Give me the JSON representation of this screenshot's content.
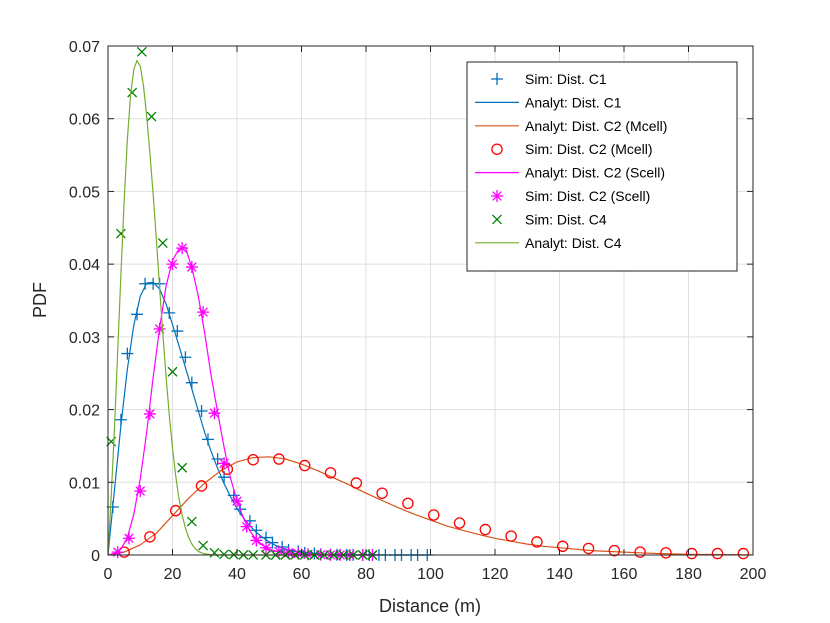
{
  "chart_data": {
    "type": "line",
    "title": "",
    "xlabel": "Distance (m)",
    "ylabel": "PDF",
    "xlim": [
      0,
      200
    ],
    "ylim": [
      0,
      0.07
    ],
    "xticks": [
      0,
      20,
      40,
      60,
      80,
      100,
      120,
      140,
      160,
      180,
      200
    ],
    "xtick_labels": [
      "0",
      "20",
      "40",
      "60",
      "80",
      "100",
      "120",
      "140",
      "160",
      "180",
      "200"
    ],
    "yticks": [
      0,
      0.01,
      0.02,
      0.03,
      0.04,
      0.05,
      0.06,
      0.07
    ],
    "ytick_labels": [
      "0",
      "0.01",
      "0.02",
      "0.03",
      "0.04",
      "0.05",
      "0.06",
      "0.07"
    ],
    "grid": true,
    "legend_position": "top-right",
    "series": [
      {
        "name": "Sim: Dist. C1",
        "kind": "markers",
        "marker": "plus",
        "color": "#0072BD",
        "x": [
          1.5,
          4,
          6,
          9,
          11.5,
          14,
          16,
          19,
          21.5,
          24,
          26,
          29,
          31,
          34,
          36,
          39,
          41,
          44,
          46,
          49,
          51,
          54,
          56,
          59,
          61,
          64,
          66,
          69,
          71,
          74,
          76,
          79,
          81,
          84,
          86,
          89,
          91,
          94,
          96,
          99
        ],
        "y": [
          0.0066,
          0.0186,
          0.0277,
          0.0331,
          0.0373,
          0.0373,
          0.0373,
          0.0333,
          0.0308,
          0.0272,
          0.0237,
          0.0198,
          0.0159,
          0.0132,
          0.0107,
          0.0082,
          0.0063,
          0.0047,
          0.0034,
          0.0024,
          0.0017,
          0.0011,
          0.0007,
          0.0005,
          0.0003,
          0.0002,
          0.0001,
          5e-05,
          3e-05,
          2e-05,
          1e-05,
          0,
          0,
          0,
          0,
          0,
          0,
          0,
          0,
          0
        ]
      },
      {
        "name": "Analyt: Dist. C1",
        "kind": "line",
        "color": "#0072BD",
        "x": [
          0,
          2,
          4,
          6,
          8,
          10,
          12,
          14,
          16,
          18,
          20,
          22,
          24,
          26,
          28,
          30,
          32,
          34,
          36,
          38,
          40,
          42,
          44,
          46,
          48,
          50,
          52,
          54,
          56,
          58,
          60,
          64,
          68,
          72,
          76,
          80,
          90,
          100
        ],
        "y": [
          0,
          0.009,
          0.0178,
          0.0255,
          0.0316,
          0.0356,
          0.0374,
          0.0375,
          0.0366,
          0.0345,
          0.0317,
          0.0288,
          0.0258,
          0.0228,
          0.0198,
          0.0168,
          0.0142,
          0.0119,
          0.0098,
          0.008,
          0.0064,
          0.0051,
          0.004,
          0.0031,
          0.0024,
          0.0018,
          0.0013,
          0.001,
          0.0007,
          0.0005,
          0.0004,
          0.0002,
          0.0001,
          5e-05,
          2e-05,
          1e-05,
          0,
          0
        ]
      },
      {
        "name": "Analyt: Dist. C2 (Mcell)",
        "kind": "line",
        "color": "#D95319",
        "x": [
          0,
          5,
          10,
          15,
          20,
          25,
          30,
          35,
          40,
          45,
          50,
          55,
          60,
          65,
          70,
          75,
          80,
          85,
          90,
          95,
          100,
          105,
          110,
          115,
          120,
          125,
          130,
          135,
          140,
          145,
          150,
          155,
          160,
          165,
          170,
          180,
          190,
          200
        ],
        "y": [
          0,
          0.0004,
          0.0014,
          0.003,
          0.0054,
          0.0078,
          0.0099,
          0.0116,
          0.0128,
          0.0134,
          0.0135,
          0.0132,
          0.0125,
          0.0116,
          0.0106,
          0.0096,
          0.0085,
          0.0075,
          0.0065,
          0.0056,
          0.0048,
          0.004,
          0.0034,
          0.0028,
          0.0023,
          0.0019,
          0.0015,
          0.0012,
          0.001,
          0.0008,
          0.0006,
          0.0005,
          0.0004,
          0.0003,
          0.0002,
          0.0001,
          5e-05,
          2e-05
        ]
      },
      {
        "name": "Sim: Dist. C2 (Mcell)",
        "kind": "markers",
        "marker": "circle",
        "color": "#FF0000",
        "x": [
          5,
          13,
          21,
          29,
          37,
          45,
          53,
          61,
          69,
          77,
          85,
          93,
          101,
          109,
          117,
          125,
          133,
          141,
          149,
          157,
          165,
          173,
          181,
          189,
          197
        ],
        "y": [
          0.0004,
          0.0025,
          0.0061,
          0.0095,
          0.0118,
          0.0131,
          0.0132,
          0.0123,
          0.0113,
          0.0099,
          0.0085,
          0.0071,
          0.0055,
          0.0044,
          0.0035,
          0.0026,
          0.0018,
          0.0012,
          0.0009,
          0.0006,
          0.0004,
          0.0003,
          0.0002,
          0.0002,
          0.0002
        ]
      },
      {
        "name": "Analyt: Dist. C2 (Scell)",
        "kind": "line",
        "color": "#FF00FF",
        "x": [
          0,
          2,
          4,
          6,
          8,
          10,
          12,
          14,
          16,
          18,
          20,
          22,
          24,
          26,
          28,
          30,
          32,
          34,
          36,
          38,
          40,
          42,
          44,
          46,
          48,
          50,
          54,
          58,
          62,
          66,
          70,
          80
        ],
        "y": [
          0,
          0.0002,
          0.0008,
          0.0024,
          0.0056,
          0.0105,
          0.0169,
          0.0245,
          0.0312,
          0.037,
          0.0405,
          0.0421,
          0.0423,
          0.0395,
          0.0356,
          0.0304,
          0.0246,
          0.0196,
          0.0148,
          0.0105,
          0.0075,
          0.0051,
          0.0033,
          0.0021,
          0.0013,
          0.0008,
          0.0003,
          0.0001,
          5e-05,
          2e-05,
          1e-05,
          0
        ]
      },
      {
        "name": "Sim: Dist. C2 (Scell)",
        "kind": "markers",
        "marker": "asterisk",
        "color": "#FF00FF",
        "x": [
          3,
          6.5,
          10,
          13,
          16,
          20,
          23,
          26,
          29.5,
          33,
          36,
          40,
          43,
          46,
          49,
          53,
          56,
          59,
          62,
          66,
          69,
          72,
          75,
          79,
          82
        ],
        "y": [
          0.0004,
          0.0023,
          0.0088,
          0.0194,
          0.0311,
          0.04,
          0.0422,
          0.0396,
          0.0334,
          0.0195,
          0.0126,
          0.0074,
          0.0039,
          0.002,
          0.001,
          0.0005,
          0.0003,
          0.0002,
          0.0001,
          5e-05,
          2e-05,
          1e-05,
          0,
          0,
          0
        ]
      },
      {
        "name": "Sim: Dist. C4",
        "kind": "markers",
        "marker": "x",
        "color": "#008000",
        "x": [
          1,
          4,
          7.5,
          10.5,
          13.5,
          17,
          20,
          23,
          26,
          29.5,
          33,
          36,
          39,
          42,
          45,
          49,
          52,
          55,
          58,
          61,
          64,
          67,
          70,
          73,
          76,
          79,
          82
        ],
        "y": [
          0.0156,
          0.0442,
          0.0636,
          0.0692,
          0.0603,
          0.0429,
          0.0252,
          0.012,
          0.0046,
          0.0013,
          0.0003,
          0.0001,
          5e-05,
          2e-05,
          1e-05,
          0,
          0,
          0,
          0,
          0,
          0,
          0,
          0,
          0,
          0,
          0,
          0
        ]
      },
      {
        "name": "Analyt: Dist. C4",
        "kind": "line",
        "color": "#77AC30",
        "x": [
          0,
          1,
          2,
          3,
          4,
          5,
          6,
          7,
          8,
          9,
          10,
          11,
          12,
          13,
          14,
          15,
          16,
          17,
          18,
          19,
          20,
          21,
          22,
          23,
          24,
          25,
          26,
          27,
          28,
          29,
          30,
          32,
          34,
          36,
          40,
          50,
          60,
          70,
          80
        ],
        "y": [
          0,
          0.008,
          0.0175,
          0.028,
          0.0385,
          0.0485,
          0.057,
          0.0633,
          0.0668,
          0.068,
          0.0672,
          0.0645,
          0.0603,
          0.0553,
          0.0495,
          0.0433,
          0.0368,
          0.0305,
          0.0245,
          0.0192,
          0.0147,
          0.0109,
          0.0078,
          0.0055,
          0.0037,
          0.0024,
          0.0015,
          0.0009,
          0.0005,
          0.0003,
          0.00015,
          5e-05,
          2e-05,
          1e-05,
          0,
          0,
          0,
          0,
          0
        ]
      }
    ]
  }
}
